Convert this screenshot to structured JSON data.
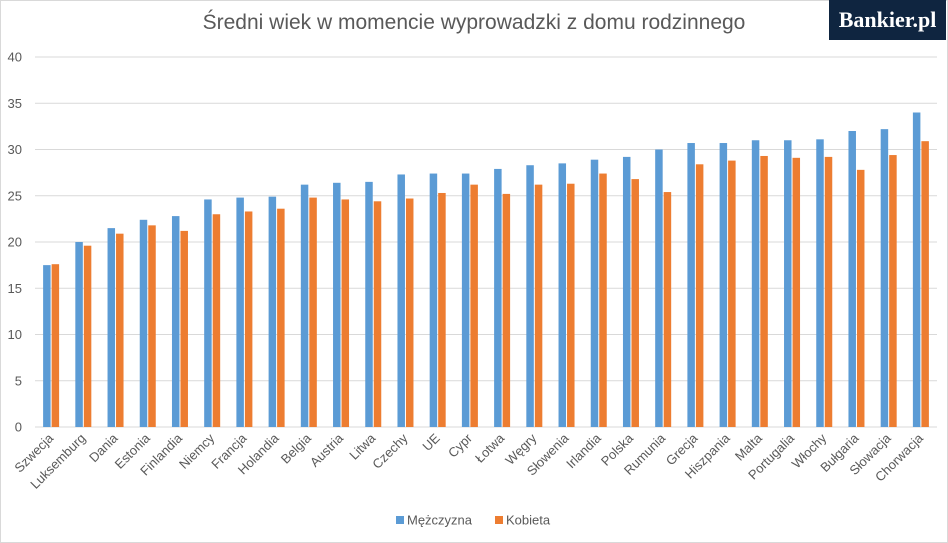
{
  "logo": {
    "text": "Bankier.pl"
  },
  "chart_data": {
    "type": "bar",
    "title": "Średni wiek w momencie wyprowadzki z domu rodzinnego",
    "xlabel": "",
    "ylabel": "",
    "ylim": [
      0,
      40
    ],
    "yticks": [
      0,
      5,
      10,
      15,
      20,
      25,
      30,
      35,
      40
    ],
    "grid": true,
    "legend": "bottom",
    "categories": [
      "Szwecja",
      "Luksemburg",
      "Dania",
      "Estonia",
      "Finlandia",
      "Niemcy",
      "Francja",
      "Holandia",
      "Belgia",
      "Austria",
      "Litwa",
      "Czechy",
      "UE",
      "Cypr",
      "Łotwa",
      "Węgry",
      "Słowenia",
      "Irlandia",
      "Polska",
      "Rumunia",
      "Grecja",
      "Hiszpania",
      "Malta",
      "Portugalia",
      "Włochy",
      "Bułgaria",
      "Słowacja",
      "Chorwacja"
    ],
    "series": [
      {
        "name": "Mężczyzna",
        "color": "#5b9bd5",
        "values": [
          17.5,
          20.0,
          21.5,
          22.4,
          22.8,
          24.6,
          24.8,
          24.9,
          26.2,
          26.4,
          26.5,
          27.3,
          27.4,
          27.4,
          27.9,
          28.3,
          28.5,
          28.9,
          29.2,
          30.0,
          30.7,
          30.7,
          31.0,
          31.0,
          31.1,
          32.0,
          32.2,
          34.0
        ]
      },
      {
        "name": "Kobieta",
        "color": "#ed7d31",
        "values": [
          17.6,
          19.6,
          20.9,
          21.8,
          21.2,
          23.0,
          23.3,
          23.6,
          24.8,
          24.6,
          24.4,
          24.7,
          25.3,
          26.2,
          25.2,
          26.2,
          26.3,
          27.4,
          26.8,
          25.4,
          28.4,
          28.8,
          29.3,
          29.1,
          29.2,
          27.8,
          29.4,
          30.9
        ]
      }
    ]
  }
}
